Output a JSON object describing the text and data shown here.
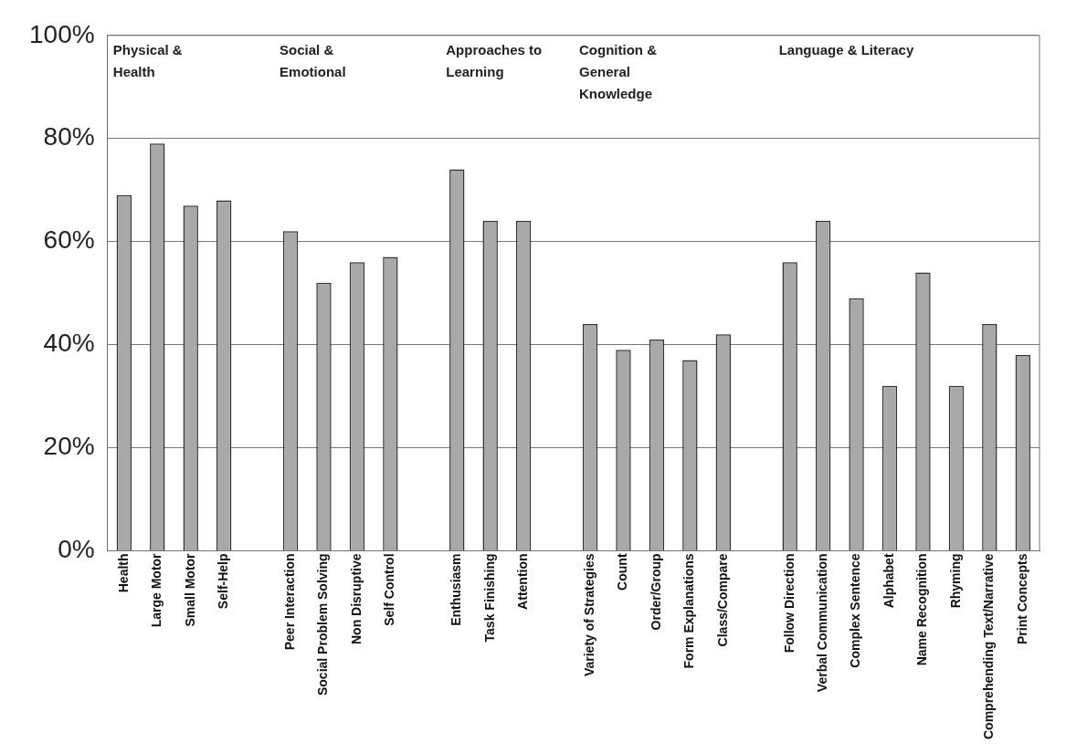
{
  "chart_data": {
    "type": "bar",
    "categories": [
      "Health",
      "Large Motor",
      "Small Motor",
      "Self-Help",
      null,
      "Peer Interaction",
      "Social Problem Solving",
      "Non Disruptive",
      "Self Control",
      null,
      "Enthusiasm",
      "Task Finishing",
      "Attention",
      null,
      "Variety of Strategies",
      "Count",
      "Order/Group",
      "Form Explanations",
      "Class/Compare",
      null,
      "Follow Direction",
      "Verbal Communication",
      "Complex Sentence",
      "Alphabet",
      "Name Recognition",
      "Rhyming",
      "Comprehending Text/Narrative",
      "Print Concepts"
    ],
    "values": [
      69,
      79,
      67,
      68,
      null,
      62,
      52,
      56,
      57,
      null,
      74,
      64,
      64,
      null,
      44,
      39,
      41,
      37,
      42,
      null,
      56,
      64,
      49,
      32,
      54,
      32,
      44,
      38
    ],
    "color": "#a9a9a9",
    "ylim": [
      0,
      100
    ],
    "yticks": [
      {
        "value": 0,
        "label": "0%"
      },
      {
        "value": 20,
        "label": "20%"
      },
      {
        "value": 40,
        "label": "40%"
      },
      {
        "value": 60,
        "label": "60%"
      },
      {
        "value": 80,
        "label": "80%"
      },
      {
        "value": 100,
        "label": "100%"
      }
    ],
    "grid": "y",
    "legend": false,
    "annotations": [
      "Physical & Health",
      "Social & Emotional",
      "Approaches to Learning",
      "Cognition & General Knowledge",
      "Language & Literacy"
    ]
  }
}
